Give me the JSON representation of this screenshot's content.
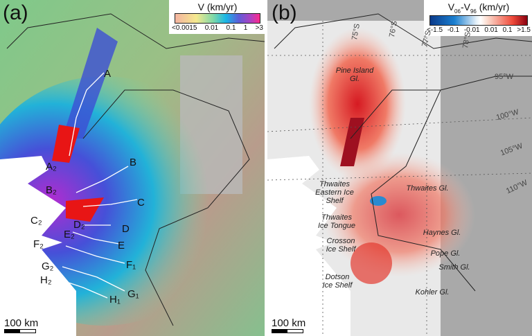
{
  "panel_a": {
    "label": "(a)",
    "legend": {
      "title": "V (km/yr)",
      "ticks": [
        "<0.0015",
        "0.01",
        "0.1",
        "1",
        ">3"
      ],
      "colors": [
        "#f4b3a0",
        "#f5e98f",
        "#7ed8a8",
        "#19b6e6",
        "#5d5dd8",
        "#b240c0",
        "#ff2a8a"
      ]
    },
    "glacier_labels": [
      "A",
      "A₂",
      "B",
      "B₂",
      "C",
      "C₂",
      "D",
      "D₂",
      "E",
      "E₂",
      "F₁",
      "F₂",
      "G₁",
      "G₂",
      "H₁",
      "H₂"
    ],
    "scale_bar": "100 km"
  },
  "panel_b": {
    "label": "(b)",
    "legend": {
      "title_main": "V",
      "title_sub1": "06",
      "title_sep": "-V",
      "title_sub2": "96",
      "title_unit": " (km/yr)",
      "ticks": [
        "<-1.5",
        "-0.1",
        "-0.01",
        "0.01",
        "0.1",
        ">1.5"
      ],
      "colors": [
        "#0b3a8a",
        "#1a7fd0",
        "#e8f2fa",
        "#ffffff",
        "#fbd6c8",
        "#ef4a3a",
        "#8a0010"
      ]
    },
    "feature_labels": [
      "Pine Island Gl.",
      "Thwaites Gl.",
      "Thwaites Eastern Ice Shelf",
      "Thwaites Ice Tongue",
      "Haynes Gl.",
      "Crosson Ice Shelf",
      "Pope Gl.",
      "Smith Gl.",
      "Dotson Ice Shelf",
      "Kohler Gl."
    ],
    "latitudes": [
      "75°S",
      "76°S",
      "77°S",
      "78°S"
    ],
    "longitudes": [
      "95°W",
      "100°W",
      "105°W",
      "110°W"
    ],
    "scale_bar": "100 km"
  }
}
